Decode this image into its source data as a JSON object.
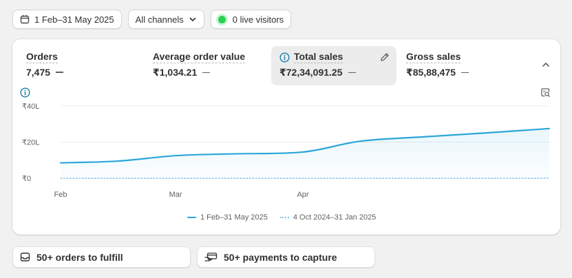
{
  "toolbar": {
    "date_range": "1 Feb–31 May 2025",
    "channels": "All channels",
    "live_visitors": "0 live visitors"
  },
  "metrics": [
    {
      "label": "Orders",
      "value": "7,475"
    },
    {
      "label": "Average order value",
      "value": "₹1,034.21"
    },
    {
      "label": "Total sales",
      "value": "₹72,34,091.25"
    },
    {
      "label": "Gross sales",
      "value": "₹85,88,475"
    }
  ],
  "chart_data": {
    "type": "line",
    "x_ticks": [
      "Feb",
      "Mar",
      "Apr"
    ],
    "y_ticks": [
      "₹40L",
      "₹20L",
      "₹0"
    ],
    "ylim": [
      0,
      40
    ],
    "y_unit": "L",
    "grid": true,
    "legend_position": "bottom",
    "series": [
      {
        "name": "1 Feb–31 May 2025",
        "color": "#2aa6d8",
        "style": "solid",
        "x": [
          "2025-02-01",
          "2025-02-15",
          "2025-03-01",
          "2025-03-15",
          "2025-04-01",
          "2025-04-15",
          "2025-05-01",
          "2025-05-15",
          "2025-05-31"
        ],
        "values": [
          8.5,
          9.5,
          12.5,
          13.5,
          14.5,
          20.5,
          23,
          25,
          27.5
        ]
      },
      {
        "name": "4 Oct 2024–31 Jan 2025",
        "color": "#7cc3e3",
        "style": "dotted",
        "x": [
          "2025-02-01",
          "2025-05-31"
        ],
        "values": [
          0,
          0
        ]
      }
    ]
  },
  "bottom_actions": [
    {
      "label": "50+ orders to fulfill",
      "icon": "inbox-icon"
    },
    {
      "label": "50+ payments to capture",
      "icon": "payment-icon"
    }
  ],
  "colors": {
    "accent": "#2aa6d8",
    "live": "#29d04f",
    "info": "#1b7ea8"
  }
}
